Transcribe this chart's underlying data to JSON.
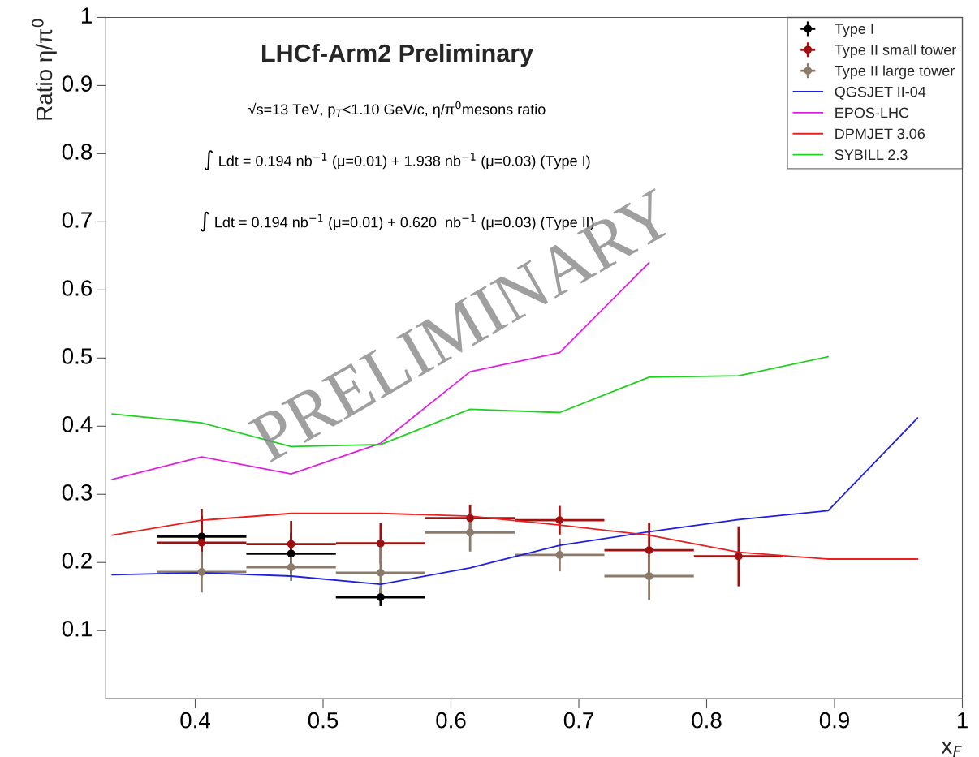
{
  "chart_data": {
    "type": "line",
    "title": "LHCf-Arm2 Preliminary",
    "xlabel": "x$_{F}$",
    "ylabel": "Ratio η/π$^{0}$",
    "xlim": [
      0.33,
      1
    ],
    "ylim": [
      0,
      1
    ],
    "xticks": [
      0.4,
      0.5,
      0.6,
      0.7,
      0.8,
      0.9,
      1
    ],
    "yticks": [
      0.1,
      0.2,
      0.3,
      0.4,
      0.5,
      0.6,
      0.7,
      0.8,
      0.9,
      1
    ],
    "legend": "top right",
    "grid": false,
    "annotations": [
      "√s=13 TeV, p$_{T}$<1.10 GeV/c, η/π$^{0}$mesons ratio",
      "∫ Ldt = 0.194 nb$^{−1}$ (μ=0.01) + 1.938 nb$^{−1}$ (μ=0.03) (Type I)",
      "∫ Ldt = 0.194 nb$^{−1}$ (μ=0.01) + 0.620  nb$^{−1}$ (μ=0.03) (Type II)",
      "PRELIMINARY"
    ],
    "series": [
      {
        "name": "Type I",
        "type": "scatter",
        "marker": "circle",
        "color": "#000000",
        "x": [
          0.405,
          0.475,
          0.545
        ],
        "values": [
          0.238,
          0.213,
          0.149
        ],
        "errors": [
          0.03,
          0.03,
          0.013
        ],
        "xerrors": [
          0.035,
          0.035,
          0.035
        ]
      },
      {
        "name": "Type II small tower",
        "type": "scatter",
        "marker": "circle",
        "color": "#a01010",
        "x": [
          0.405,
          0.475,
          0.545,
          0.615,
          0.685,
          0.755,
          0.825
        ],
        "values": [
          0.229,
          0.227,
          0.228,
          0.265,
          0.262,
          0.218,
          0.209
        ],
        "errors": [
          0.05,
          0.034,
          0.03,
          0.02,
          0.021,
          0.04,
          0.044
        ],
        "xerrors": [
          0.035,
          0.035,
          0.035,
          0.035,
          0.035,
          0.035,
          0.035
        ]
      },
      {
        "name": "Type II large tower",
        "type": "scatter",
        "marker": "circle",
        "color": "#8c7a6b",
        "x": [
          0.405,
          0.475,
          0.545,
          0.615,
          0.685,
          0.755
        ],
        "values": [
          0.186,
          0.193,
          0.185,
          0.244,
          0.211,
          0.18
        ],
        "errors": [
          0.03,
          0.02,
          0.04,
          0.028,
          0.024,
          0.035
        ],
        "xerrors": [
          0.035,
          0.035,
          0.035,
          0.035,
          0.035,
          0.035
        ]
      },
      {
        "name": "QGSJET II-04",
        "color": "#2020e0",
        "x": [
          0.335,
          0.405,
          0.475,
          0.545,
          0.615,
          0.685,
          0.755,
          0.825,
          0.895,
          0.965
        ],
        "values": [
          0.182,
          0.185,
          0.18,
          0.168,
          0.192,
          0.225,
          0.245,
          0.263,
          0.276,
          0.412
        ]
      },
      {
        "name": "EPOS-LHC",
        "color": "#e020e0",
        "x": [
          0.335,
          0.405,
          0.475,
          0.545,
          0.615,
          0.685,
          0.755
        ],
        "values": [
          0.322,
          0.355,
          0.33,
          0.375,
          0.48,
          0.508,
          0.64
        ]
      },
      {
        "name": "DPMJET 3.06",
        "color": "#e82020",
        "x": [
          0.335,
          0.405,
          0.475,
          0.545,
          0.615,
          0.685,
          0.755,
          0.825,
          0.895,
          0.965
        ],
        "values": [
          0.24,
          0.262,
          0.272,
          0.272,
          0.268,
          0.255,
          0.24,
          0.215,
          0.205,
          0.205
        ]
      },
      {
        "name": "SYBILL 2.3",
        "color": "#20d020",
        "x": [
          0.335,
          0.405,
          0.475,
          0.545,
          0.615,
          0.685,
          0.755,
          0.825,
          0.895
        ],
        "values": [
          0.418,
          0.405,
          0.37,
          0.373,
          0.425,
          0.42,
          0.472,
          0.474,
          0.502
        ]
      }
    ]
  }
}
